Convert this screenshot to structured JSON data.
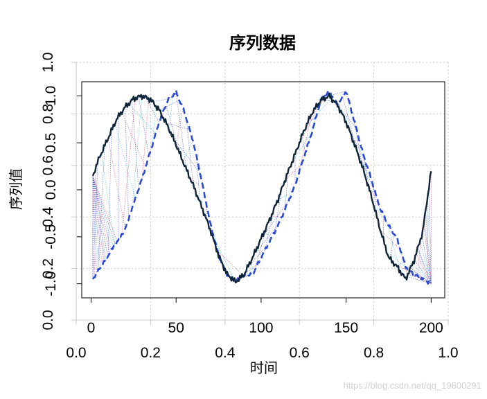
{
  "chart_data": {
    "type": "line",
    "title": "序列数据",
    "xlabel": "时间",
    "ylabel": "序列值",
    "inner": {
      "xlim": [
        -5.5,
        208
      ],
      "ylim": [
        -1.15,
        1.15
      ],
      "xticks": [
        0,
        50,
        100,
        150,
        200
      ],
      "yticks": [
        -1.0,
        -0.5,
        0.0,
        0.5,
        1.0
      ],
      "xtick_labels": [
        "0",
        "50",
        "100",
        "150",
        "200"
      ],
      "ytick_labels": [
        "-1.0",
        "-0.5",
        "0.0",
        "0.5",
        "1.0"
      ],
      "series": [
        {
          "style": "solid",
          "color": "#0f2438",
          "x": [
            1,
            5,
            10,
            15,
            20,
            25,
            30,
            35,
            40,
            45,
            50,
            55,
            60,
            65,
            70,
            75,
            80,
            85,
            90,
            95,
            100,
            105,
            110,
            115,
            120,
            125,
            130,
            135,
            140,
            145,
            150,
            155,
            160,
            165,
            170,
            175,
            180,
            185,
            190,
            195,
            200
          ],
          "y": [
            0.15,
            0.35,
            0.55,
            0.75,
            0.88,
            0.97,
            1.0,
            0.96,
            0.85,
            0.68,
            0.48,
            0.26,
            0.05,
            -0.18,
            -0.42,
            -0.7,
            -0.9,
            -0.98,
            -0.9,
            -0.72,
            -0.52,
            -0.32,
            -0.1,
            0.15,
            0.38,
            0.62,
            0.82,
            0.95,
            1.0,
            0.9,
            0.72,
            0.48,
            0.22,
            -0.08,
            -0.42,
            -0.72,
            -0.82,
            -0.95,
            -0.75,
            -0.45,
            0.2
          ]
        },
        {
          "style": "dashed",
          "color": "#2a49d6",
          "x": [
            1,
            10,
            20,
            30,
            40,
            45,
            50,
            55,
            60,
            65,
            70,
            75,
            80,
            85,
            90,
            95,
            100,
            110,
            120,
            130,
            135,
            140,
            145,
            150,
            155,
            160,
            165,
            170,
            175,
            180,
            185,
            190,
            195,
            200
          ],
          "y": [
            -0.95,
            -0.7,
            -0.42,
            0.12,
            0.72,
            0.95,
            1.04,
            0.82,
            0.52,
            0.1,
            -0.35,
            -0.7,
            -0.9,
            -0.97,
            -0.92,
            -0.9,
            -0.72,
            -0.38,
            0.05,
            0.62,
            0.95,
            1.05,
            0.9,
            1.05,
            0.72,
            0.38,
            0.1,
            -0.2,
            -0.38,
            -0.52,
            -0.82,
            -0.9,
            -0.95,
            -1.0
          ]
        }
      ]
    },
    "outer": {
      "xlim": [
        0,
        1
      ],
      "ylim": [
        0,
        1
      ],
      "xticks": [
        0.0,
        0.2,
        0.4,
        0.6,
        0.8,
        1.0
      ],
      "yticks": [
        0.0,
        0.2,
        0.4,
        0.6,
        0.8,
        1.0
      ],
      "xtick_labels": [
        "0.0",
        "0.2",
        "0.4",
        "0.6",
        "0.8",
        "1.0"
      ],
      "ytick_labels": [
        "0.0",
        "0.2",
        "0.4",
        "0.6",
        "0.8",
        "1.0"
      ],
      "grid": true
    },
    "annotation": "https://blog.csdn.net/qq_19600291",
    "colors": {
      "solid_line": "#0f2438",
      "dashed_line": "#2a49d6",
      "connector_red": "#e03060",
      "connector_blue": "#2a3fd6",
      "connector_cyan": "#2bb5c9",
      "grid": "#c9c9c9"
    }
  }
}
